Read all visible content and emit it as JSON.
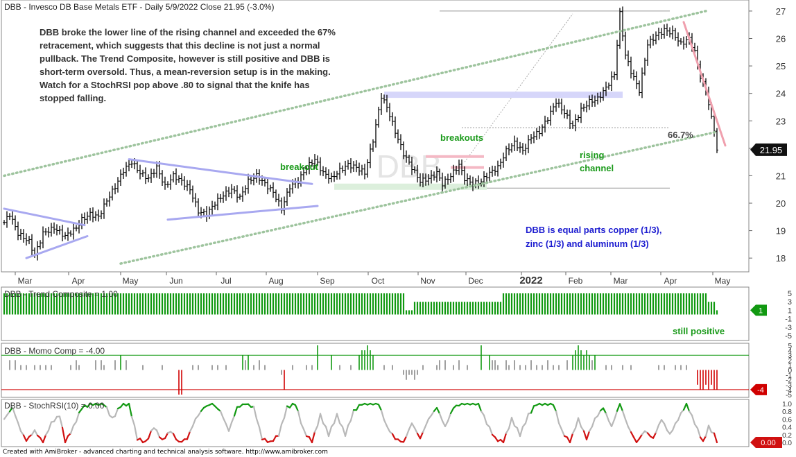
{
  "header": {
    "title": "DBB - Invesco DB Base Metals ETF - Daily 5/9/2022 Close 21.95 (-3.0%)",
    "watermark": "DBB"
  },
  "annotations": {
    "commentary": [
      "DBB broke the lower line of the rising channel and exceeded the 67%",
      "retracement, which suggests that this decline is not just a normal",
      "pullback. The Trend Composite, however is still positive and DBB is",
      "short-term oversold. Thus, a mean-reversion setup is in the making.",
      "Watch for a StochRSI pop  above .80 to signal that the knife has",
      "stopped falling."
    ],
    "breakout": "breakout",
    "breakouts": "breakouts",
    "rising_channel": [
      "rising",
      "channel"
    ],
    "retracement": "66.7%",
    "composition": [
      "DBB is equal parts copper (1/3),",
      "zinc (1/3) and aluminum (1/3)"
    ],
    "still_positive": "still positive"
  },
  "footer": "Created with AmiBroker - advanced charting and technical analysis software. http://www.amibroker.com",
  "colors": {
    "channel": "#9ec49e",
    "triangle": "#a8a8f0",
    "zone_blue": "#d6d6fa",
    "zone_green": "#dcefdc",
    "zone_pink": "#f4b8c4",
    "green_text": "#1a9a1a",
    "blue_text": "#1c1cd0",
    "bar_green": "#119911",
    "momo_red": "#d00000",
    "stoch_red": "#d01010",
    "stoch_gray": "#b8b8b8"
  },
  "chart_data": [
    {
      "type": "ohlc",
      "name": "price",
      "ylim": [
        17.6,
        27.2
      ],
      "yticks": [
        "18",
        "19",
        "20",
        "21",
        "22",
        "23",
        "24",
        "25",
        "26",
        "27"
      ],
      "xticks": [
        "Mar",
        "Apr",
        "May",
        "Jun",
        "Jul",
        "Aug",
        "Sep",
        "Oct",
        "Nov",
        "Dec",
        "2022",
        "Feb",
        "Mar",
        "Apr",
        "May"
      ],
      "last_close": "21.95",
      "path": [
        [
          0,
          19.3
        ],
        [
          2,
          19.6
        ],
        [
          5,
          18.9
        ],
        [
          9,
          18.6
        ],
        [
          11,
          18.1
        ],
        [
          14,
          18.9
        ],
        [
          18,
          19.1
        ],
        [
          22,
          18.8
        ],
        [
          26,
          19.1
        ],
        [
          28,
          19.4
        ],
        [
          31,
          19.6
        ],
        [
          34,
          19.5
        ],
        [
          37,
          20.1
        ],
        [
          40,
          20.6
        ],
        [
          43,
          21.2
        ],
        [
          46,
          21.5
        ],
        [
          49,
          21.1
        ],
        [
          52,
          20.9
        ],
        [
          55,
          21.3
        ],
        [
          58,
          20.6
        ],
        [
          61,
          21.0
        ],
        [
          64,
          20.8
        ],
        [
          67,
          20.5
        ],
        [
          70,
          19.7
        ],
        [
          73,
          19.6
        ],
        [
          76,
          20.0
        ],
        [
          79,
          20.3
        ],
        [
          82,
          20.5
        ],
        [
          85,
          20.2
        ],
        [
          88,
          20.8
        ],
        [
          91,
          21.0
        ],
        [
          94,
          20.7
        ],
        [
          97,
          20.4
        ],
        [
          100,
          19.8
        ],
        [
          103,
          20.6
        ],
        [
          106,
          20.8
        ],
        [
          109,
          21.3
        ],
        [
          112,
          21.6
        ],
        [
          115,
          21.1
        ],
        [
          118,
          20.9
        ],
        [
          121,
          21.2
        ],
        [
          124,
          21.4
        ],
        [
          127,
          21.3
        ],
        [
          130,
          21.1
        ],
        [
          133,
          22.3
        ],
        [
          136,
          23.9
        ],
        [
          138,
          23.5
        ],
        [
          141,
          22.6
        ],
        [
          144,
          21.8
        ],
        [
          147,
          21.3
        ],
        [
          150,
          20.8
        ],
        [
          153,
          20.9
        ],
        [
          156,
          21.1
        ],
        [
          158,
          20.7
        ],
        [
          161,
          21.0
        ],
        [
          164,
          21.4
        ],
        [
          166,
          20.9
        ],
        [
          169,
          20.7
        ],
        [
          172,
          20.8
        ],
        [
          175,
          21.1
        ],
        [
          178,
          21.3
        ],
        [
          181,
          21.9
        ],
        [
          184,
          22.2
        ],
        [
          187,
          21.9
        ],
        [
          190,
          22.4
        ],
        [
          193,
          22.6
        ],
        [
          196,
          23.1
        ],
        [
          199,
          23.7
        ],
        [
          202,
          23.3
        ],
        [
          205,
          22.8
        ],
        [
          208,
          23.4
        ],
        [
          211,
          23.7
        ],
        [
          214,
          23.8
        ],
        [
          217,
          24.2
        ],
        [
          220,
          24.7
        ],
        [
          222,
          26.9
        ],
        [
          224,
          25.4
        ],
        [
          226,
          24.8
        ],
        [
          229,
          24.1
        ],
        [
          232,
          25.8
        ],
        [
          235,
          26.1
        ],
        [
          238,
          26.3
        ],
        [
          241,
          26.2
        ],
        [
          244,
          25.8
        ],
        [
          247,
          26.0
        ],
        [
          249,
          25.5
        ],
        [
          251,
          24.6
        ],
        [
          253,
          24.1
        ],
        [
          255,
          23.1
        ],
        [
          256,
          22.7
        ],
        [
          257,
          21.9
        ]
      ],
      "channel_upper": [
        [
          0,
          21.0
        ],
        [
          253,
          27.0
        ]
      ],
      "channel_lower": [
        [
          42,
          17.8
        ],
        [
          257,
          22.6
        ]
      ],
      "triangle_1": [
        [
          [
            0,
            19.8
          ],
          [
            29,
            19.2
          ]
        ],
        [
          [
            8,
            18.0
          ],
          [
            30,
            18.8
          ]
        ]
      ],
      "triangle_2": [
        [
          [
            45,
            21.6
          ],
          [
            111,
            20.7
          ]
        ],
        [
          [
            59,
            19.4
          ],
          [
            113,
            19.9
          ]
        ]
      ],
      "resistance_zone": {
        "x": [
          137,
          223
        ],
        "level": 23.95
      },
      "support_zone": {
        "x": [
          119,
          174
        ],
        "level": 20.6
      },
      "pink_levels": [
        {
          "x": [
            152,
            173
          ],
          "level": 21.7
        },
        {
          "x": [
            161,
            173
          ],
          "level": 21.3
        }
      ],
      "retracement_lines": [
        {
          "x": [
            157,
            240
          ],
          "level": 27.0
        },
        {
          "x": [
            165,
            240
          ],
          "level": 22.75
        },
        {
          "x": [
            165,
            240
          ],
          "level": 20.55
        }
      ],
      "decline_line": [
        [
          245,
          26.6
        ],
        [
          260,
          22.1
        ]
      ],
      "dotted_diagonal": [
        [
          166,
          21.5
        ],
        [
          205,
          26.9
        ]
      ]
    },
    {
      "type": "bar",
      "name": "DBB - Trend Composite = 1.00",
      "ylim": [
        -5,
        5
      ],
      "yticks": [
        "5",
        "3",
        "1",
        "-1",
        "-3",
        "-5"
      ],
      "last_value": "1",
      "values_runs": [
        [
          0,
          144,
          5
        ],
        [
          145,
          147,
          1
        ],
        [
          148,
          179,
          3
        ],
        [
          180,
          253,
          5
        ],
        [
          254,
          256,
          3
        ],
        [
          257,
          257,
          1
        ]
      ]
    },
    {
      "type": "bar",
      "name": "DBB - Momo Comp = -4.00",
      "ylim": [
        -5,
        5
      ],
      "yticks": [
        "5",
        "4",
        "3",
        "2",
        "1",
        "0",
        "-1",
        "-2",
        "-3",
        "-4",
        "-5"
      ],
      "last_value": "-4",
      "upper_level": 3,
      "lower_level": -4,
      "nonzero": [
        [
          2,
          2
        ],
        [
          4,
          2
        ],
        [
          6,
          1
        ],
        [
          8,
          1
        ],
        [
          11,
          1
        ],
        [
          13,
          1
        ],
        [
          15,
          1
        ],
        [
          17,
          1
        ],
        [
          24,
          1
        ],
        [
          26,
          2
        ],
        [
          27,
          1
        ],
        [
          33,
          2
        ],
        [
          35,
          2
        ],
        [
          36,
          1
        ],
        [
          40,
          2
        ],
        [
          42,
          3
        ],
        [
          44,
          2
        ],
        [
          50,
          1
        ],
        [
          57,
          1
        ],
        [
          63,
          -5
        ],
        [
          64,
          -5
        ],
        [
          68,
          1
        ],
        [
          70,
          1
        ],
        [
          75,
          1
        ],
        [
          77,
          1
        ],
        [
          80,
          1
        ],
        [
          86,
          3
        ],
        [
          87,
          2
        ],
        [
          88,
          3
        ],
        [
          90,
          1
        ],
        [
          92,
          2
        ],
        [
          94,
          1
        ],
        [
          100,
          -1
        ],
        [
          101,
          -4
        ],
        [
          104,
          1
        ],
        [
          109,
          1
        ],
        [
          111,
          1
        ],
        [
          113,
          5
        ],
        [
          118,
          3
        ],
        [
          121,
          1
        ],
        [
          125,
          1
        ],
        [
          128,
          3
        ],
        [
          129,
          4
        ],
        [
          130,
          4
        ],
        [
          131,
          5
        ],
        [
          132,
          4
        ],
        [
          133,
          3
        ],
        [
          137,
          1
        ],
        [
          140,
          1
        ],
        [
          144,
          -1
        ],
        [
          145,
          -2
        ],
        [
          146,
          -1
        ],
        [
          147,
          -1
        ],
        [
          148,
          -2
        ],
        [
          149,
          -1
        ],
        [
          151,
          1
        ],
        [
          156,
          1
        ],
        [
          157,
          2
        ],
        [
          159,
          2
        ],
        [
          162,
          1
        ],
        [
          164,
          2
        ],
        [
          167,
          1
        ],
        [
          172,
          5
        ],
        [
          175,
          3
        ],
        [
          176,
          2
        ],
        [
          177,
          2
        ],
        [
          178,
          1
        ],
        [
          181,
          2
        ],
        [
          182,
          1
        ],
        [
          184,
          2
        ],
        [
          186,
          1
        ],
        [
          188,
          1
        ],
        [
          190,
          2
        ],
        [
          192,
          1
        ],
        [
          194,
          1
        ],
        [
          196,
          2
        ],
        [
          198,
          1
        ],
        [
          200,
          1
        ],
        [
          203,
          2
        ],
        [
          205,
          3
        ],
        [
          206,
          4
        ],
        [
          207,
          5
        ],
        [
          208,
          4
        ],
        [
          209,
          3
        ],
        [
          210,
          4
        ],
        [
          211,
          3
        ],
        [
          212,
          2
        ],
        [
          213,
          3
        ],
        [
          217,
          1
        ],
        [
          219,
          1
        ],
        [
          223,
          1
        ],
        [
          226,
          1
        ],
        [
          236,
          1
        ],
        [
          238,
          1
        ],
        [
          242,
          1
        ],
        [
          244,
          1
        ],
        [
          246,
          1
        ],
        [
          250,
          -3
        ],
        [
          251,
          -4
        ],
        [
          252,
          -4
        ],
        [
          253,
          -3
        ],
        [
          254,
          -4
        ],
        [
          255,
          -3
        ],
        [
          256,
          -4
        ],
        [
          257,
          -4
        ]
      ]
    },
    {
      "type": "line",
      "name": "DBB - StochRSI(10) = 0.00",
      "ylim": [
        0,
        1
      ],
      "yticks": [
        "1.0",
        "0.8",
        "0.6",
        "0.4",
        "0.2",
        "0.0"
      ],
      "last_value": "0.00",
      "path": [
        [
          0,
          0.6
        ],
        [
          3,
          0.9
        ],
        [
          6,
          0.3
        ],
        [
          8,
          0.05
        ],
        [
          11,
          0.3
        ],
        [
          14,
          0.0
        ],
        [
          17,
          0.5
        ],
        [
          20,
          0.7
        ],
        [
          22,
          0.0
        ],
        [
          25,
          0.4
        ],
        [
          28,
          0.9
        ],
        [
          32,
          1.0
        ],
        [
          36,
          1.0
        ],
        [
          39,
          0.6
        ],
        [
          42,
          0.95
        ],
        [
          45,
          1.0
        ],
        [
          48,
          0.1
        ],
        [
          51,
          0.0
        ],
        [
          54,
          0.4
        ],
        [
          57,
          0.05
        ],
        [
          60,
          0.3
        ],
        [
          63,
          0.0
        ],
        [
          66,
          0.1
        ],
        [
          69,
          0.6
        ],
        [
          72,
          0.9
        ],
        [
          75,
          1.0
        ],
        [
          78,
          0.8
        ],
        [
          81,
          0.3
        ],
        [
          84,
          0.9
        ],
        [
          87,
          1.0
        ],
        [
          90,
          0.9
        ],
        [
          93,
          0.1
        ],
        [
          96,
          0.0
        ],
        [
          99,
          0.2
        ],
        [
          102,
          0.9
        ],
        [
          105,
          1.0
        ],
        [
          108,
          0.3
        ],
        [
          111,
          0.0
        ],
        [
          114,
          0.7
        ],
        [
          117,
          0.2
        ],
        [
          120,
          0.7
        ],
        [
          123,
          0.2
        ],
        [
          126,
          0.8
        ],
        [
          129,
          1.0
        ],
        [
          132,
          1.0
        ],
        [
          135,
          1.0
        ],
        [
          138,
          0.4
        ],
        [
          141,
          0.1
        ],
        [
          144,
          0.0
        ],
        [
          147,
          0.5
        ],
        [
          150,
          0.1
        ],
        [
          153,
          0.6
        ],
        [
          156,
          0.9
        ],
        [
          159,
          0.4
        ],
        [
          162,
          0.9
        ],
        [
          165,
          1.0
        ],
        [
          168,
          1.0
        ],
        [
          171,
          1.0
        ],
        [
          174,
          0.5
        ],
        [
          177,
          0.1
        ],
        [
          180,
          0.0
        ],
        [
          183,
          0.6
        ],
        [
          186,
          0.2
        ],
        [
          189,
          0.7
        ],
        [
          192,
          1.0
        ],
        [
          195,
          1.0
        ],
        [
          198,
          1.0
        ],
        [
          201,
          0.3
        ],
        [
          204,
          0.0
        ],
        [
          207,
          0.6
        ],
        [
          210,
          0.1
        ],
        [
          213,
          0.6
        ],
        [
          216,
          0.9
        ],
        [
          219,
          0.4
        ],
        [
          222,
          1.0
        ],
        [
          225,
          0.4
        ],
        [
          228,
          0.0
        ],
        [
          231,
          0.3
        ],
        [
          234,
          0.1
        ],
        [
          237,
          0.6
        ],
        [
          240,
          0.2
        ],
        [
          243,
          0.6
        ],
        [
          246,
          1.0
        ],
        [
          249,
          0.5
        ],
        [
          252,
          0.0
        ],
        [
          254,
          0.4
        ],
        [
          256,
          0.2
        ],
        [
          257,
          0.0
        ]
      ]
    }
  ]
}
